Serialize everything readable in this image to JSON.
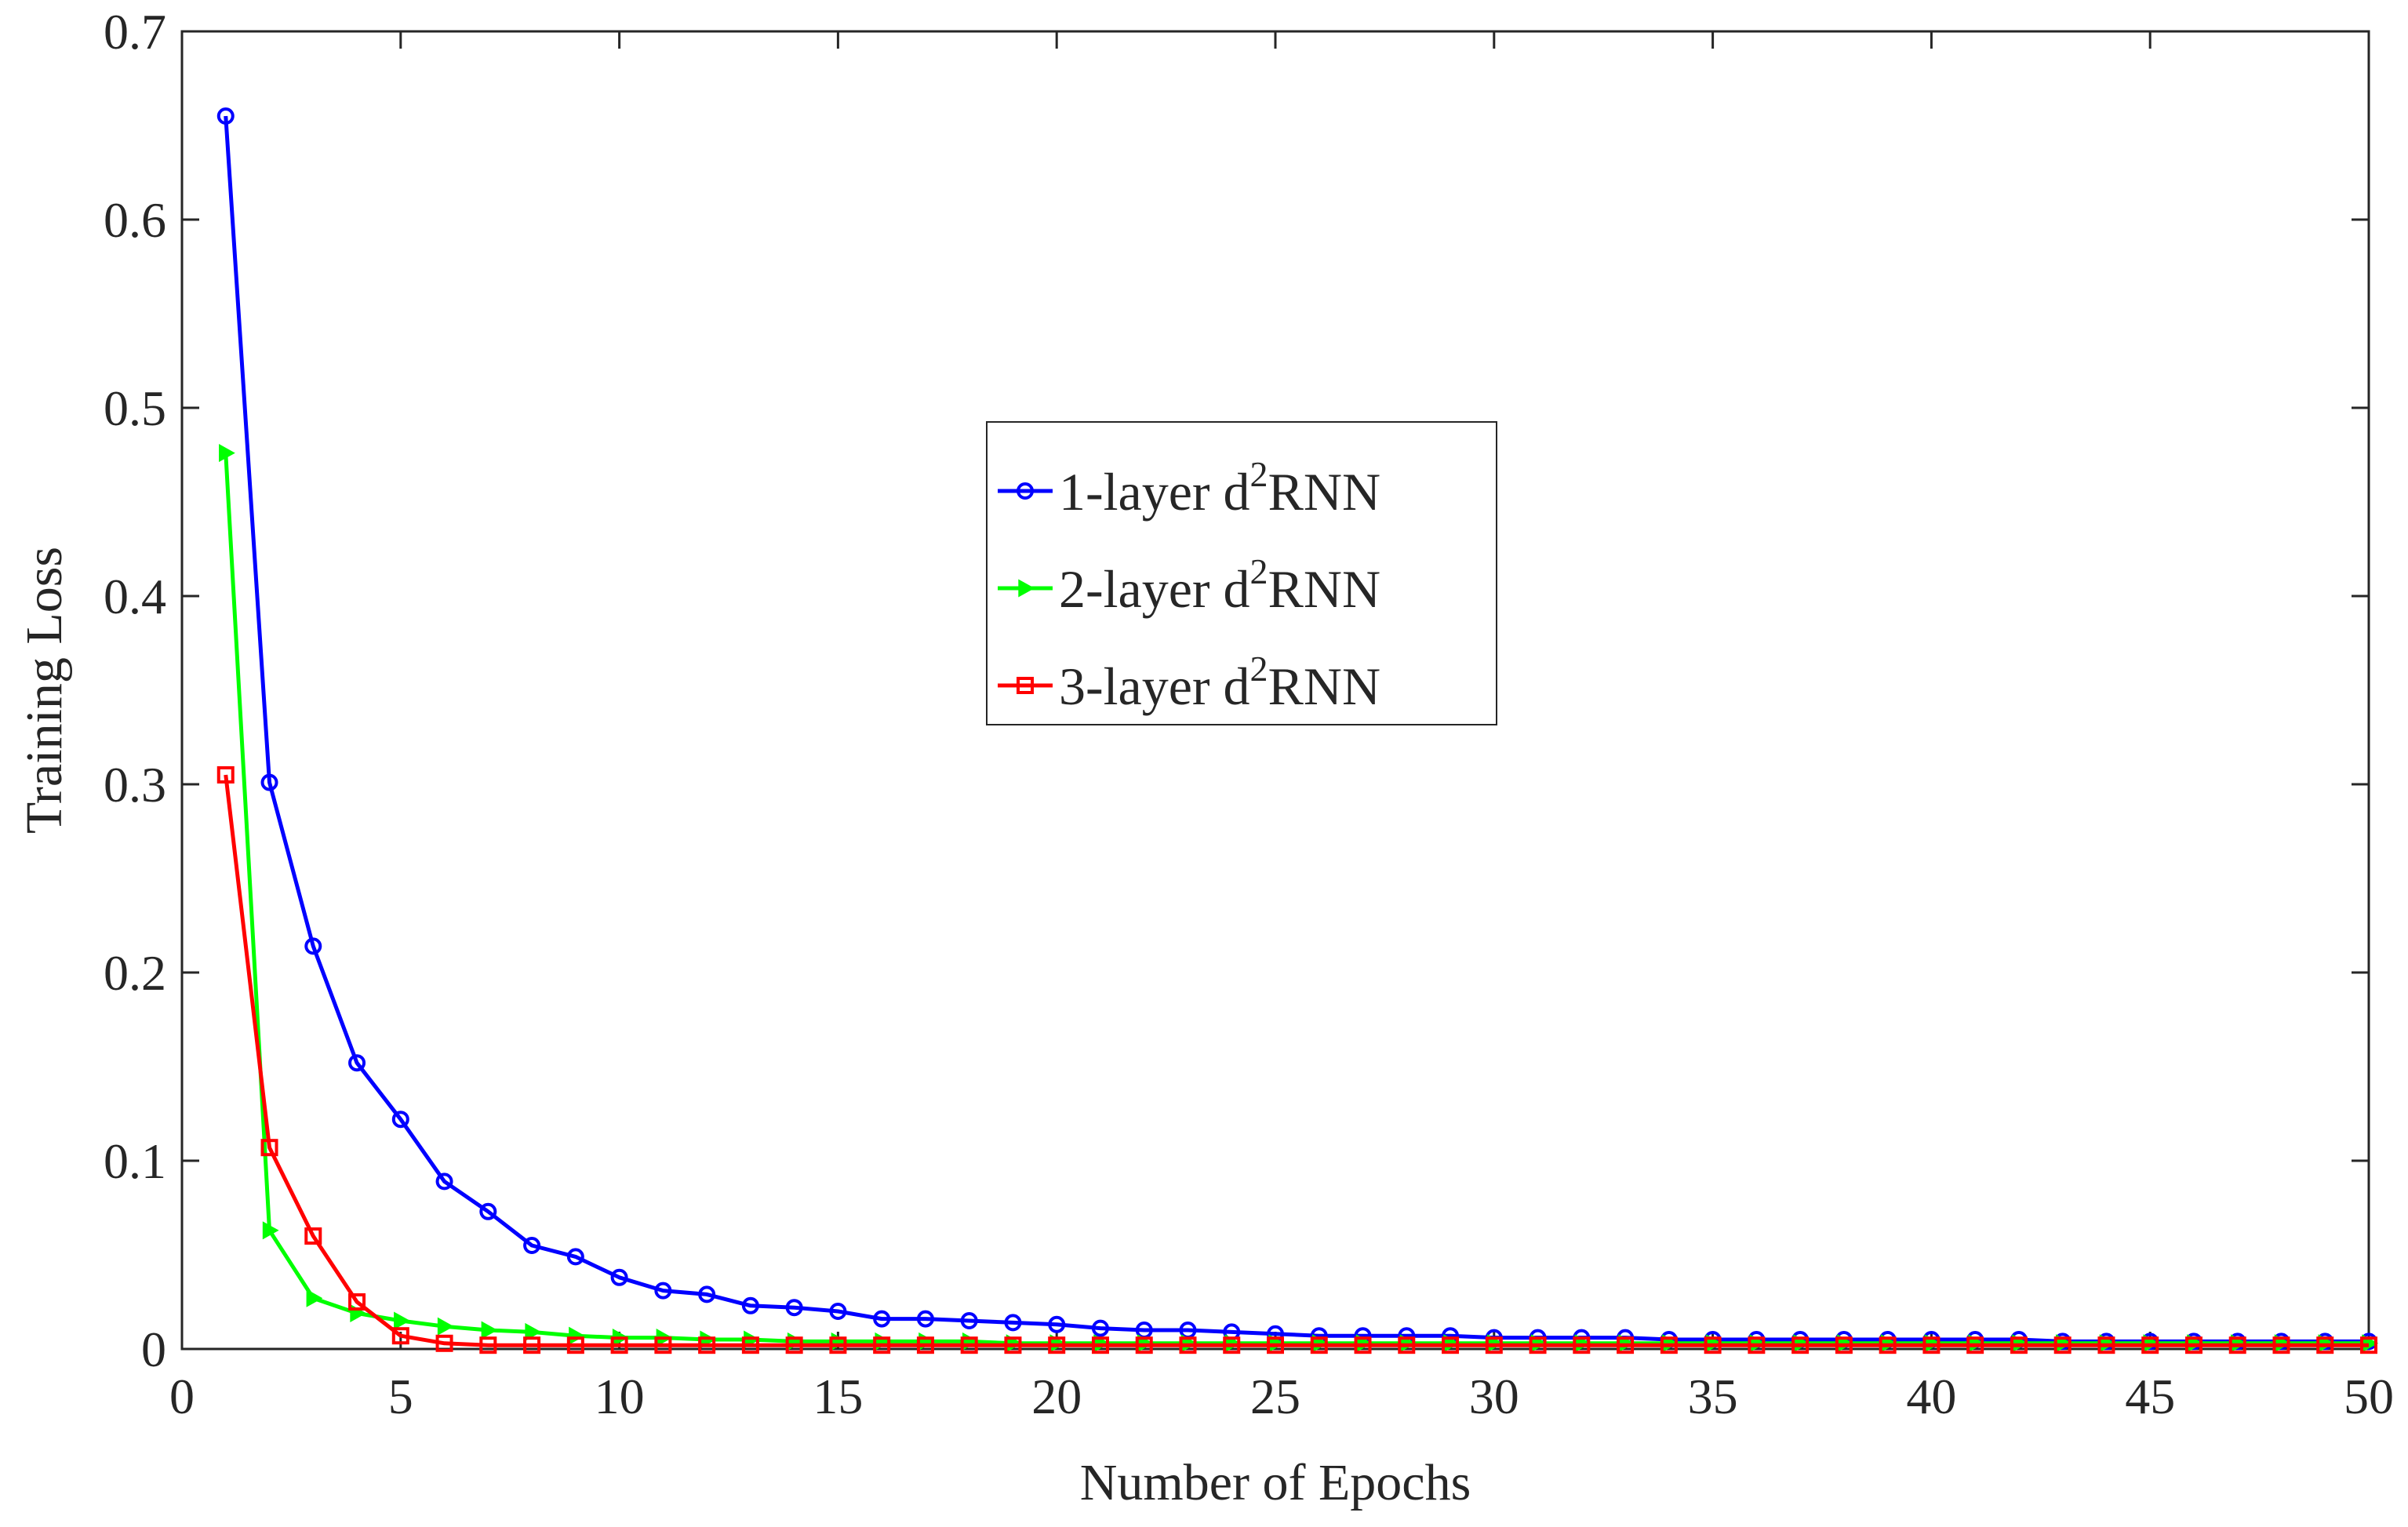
{
  "chart_data": {
    "type": "line",
    "title": "",
    "xlabel": "Number of Epochs",
    "ylabel": "Training Loss",
    "xlim": [
      0,
      50
    ],
    "ylim": [
      0,
      0.7
    ],
    "xticks": [
      "0",
      "5",
      "10",
      "15",
      "20",
      "25",
      "30",
      "35",
      "40",
      "45",
      "50"
    ],
    "yticks": [
      "0",
      "0.1",
      "0.2",
      "0.3",
      "0.4",
      "0.5",
      "0.6",
      "0.7"
    ],
    "grid": false,
    "legend_position": "center",
    "x": [
      1,
      2,
      3,
      4,
      5,
      6,
      7,
      8,
      9,
      10,
      11,
      12,
      13,
      14,
      15,
      16,
      17,
      18,
      19,
      20,
      21,
      22,
      23,
      24,
      25,
      26,
      27,
      28,
      29,
      30,
      31,
      32,
      33,
      34,
      35,
      36,
      37,
      38,
      39,
      40,
      41,
      42,
      43,
      44,
      45,
      46,
      47,
      48,
      49,
      50
    ],
    "series": [
      {
        "name": "1-layer d2RNN",
        "label": {
          "prefix": "1-layer d",
          "sup": "2",
          "suffix": "RNN"
        },
        "color": "#0000FF",
        "marker": "circle",
        "values": [
          0.655,
          0.301,
          0.214,
          0.152,
          0.122,
          0.089,
          0.073,
          0.055,
          0.049,
          0.038,
          0.031,
          0.029,
          0.023,
          0.022,
          0.02,
          0.016,
          0.016,
          0.015,
          0.014,
          0.013,
          0.011,
          0.01,
          0.01,
          0.009,
          0.008,
          0.007,
          0.007,
          0.007,
          0.007,
          0.006,
          0.006,
          0.006,
          0.006,
          0.005,
          0.005,
          0.005,
          0.005,
          0.005,
          0.005,
          0.005,
          0.005,
          0.005,
          0.004,
          0.004,
          0.004,
          0.004,
          0.004,
          0.004,
          0.004,
          0.004
        ]
      },
      {
        "name": "2-layer d2RNN",
        "label": {
          "prefix": "2-layer d",
          "sup": "2",
          "suffix": "RNN"
        },
        "color": "#00FF00",
        "marker": "triangle-right",
        "values": [
          0.476,
          0.063,
          0.027,
          0.019,
          0.015,
          0.012,
          0.01,
          0.009,
          0.007,
          0.006,
          0.006,
          0.005,
          0.005,
          0.004,
          0.004,
          0.004,
          0.004,
          0.004,
          0.003,
          0.003,
          0.003,
          0.003,
          0.003,
          0.003,
          0.003,
          0.003,
          0.003,
          0.003,
          0.003,
          0.003,
          0.003,
          0.003,
          0.003,
          0.003,
          0.003,
          0.003,
          0.003,
          0.003,
          0.003,
          0.003,
          0.003,
          0.003,
          0.003,
          0.003,
          0.003,
          0.003,
          0.003,
          0.003,
          0.003,
          0.003
        ]
      },
      {
        "name": "3-layer d2RNN",
        "label": {
          "prefix": "3-layer d",
          "sup": "2",
          "suffix": "RNN"
        },
        "color": "#FF0000",
        "marker": "square",
        "values": [
          0.305,
          0.107,
          0.06,
          0.025,
          0.007,
          0.003,
          0.002,
          0.002,
          0.002,
          0.002,
          0.002,
          0.002,
          0.002,
          0.002,
          0.002,
          0.002,
          0.002,
          0.002,
          0.002,
          0.002,
          0.002,
          0.002,
          0.002,
          0.002,
          0.002,
          0.002,
          0.002,
          0.002,
          0.002,
          0.002,
          0.002,
          0.002,
          0.002,
          0.002,
          0.002,
          0.002,
          0.002,
          0.002,
          0.002,
          0.002,
          0.002,
          0.002,
          0.002,
          0.002,
          0.002,
          0.002,
          0.002,
          0.002,
          0.002,
          0.002
        ]
      }
    ]
  }
}
